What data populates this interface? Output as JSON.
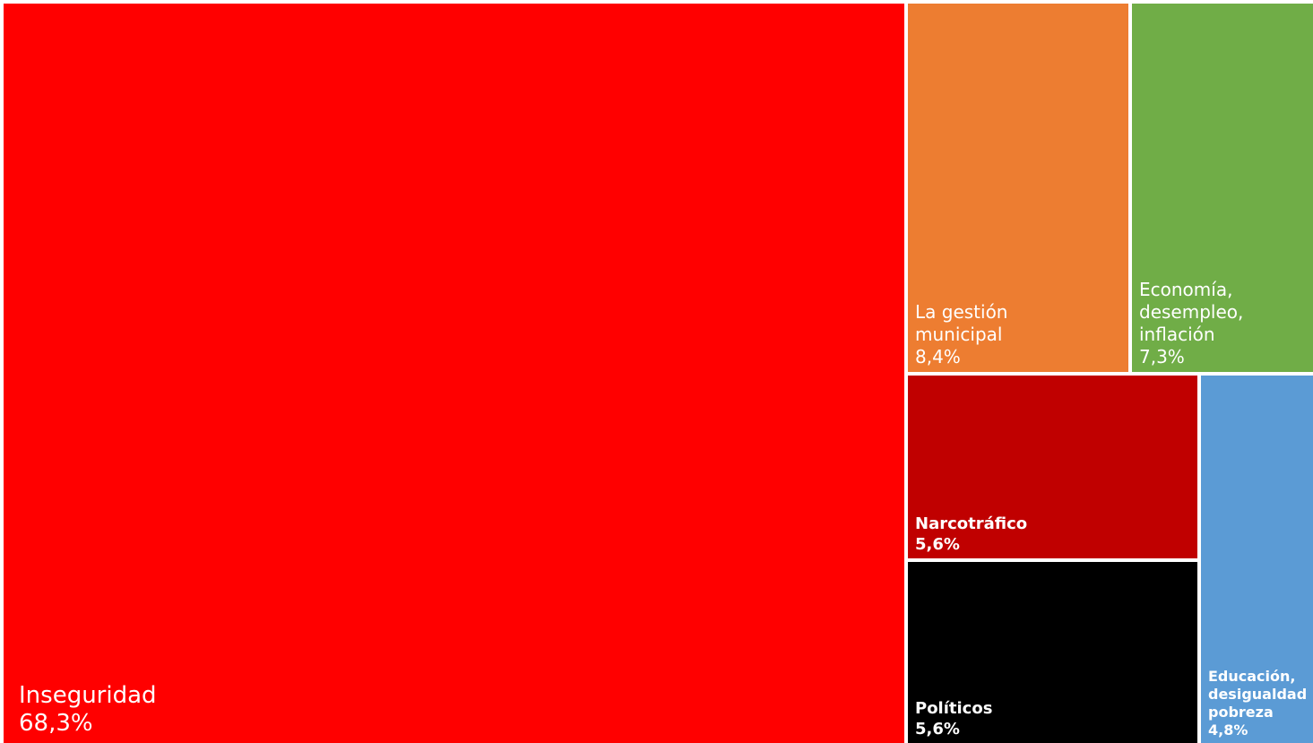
{
  "chart_data": {
    "type": "treemap",
    "unit": "%",
    "items": [
      {
        "label": "Inseguridad",
        "value": 68.3,
        "value_text": "68,3%",
        "color": "#ff0000"
      },
      {
        "label": "La gestión\nmunicipal",
        "value": 8.4,
        "value_text": "8,4%",
        "color": "#ed7d31"
      },
      {
        "label": "Economía,\ndesempleo,\ninflación",
        "value": 7.3,
        "value_text": "7,3%",
        "color": "#70ad47"
      },
      {
        "label": "Narcotráfico",
        "value": 5.6,
        "value_text": "5,6%",
        "color": "#c00000"
      },
      {
        "label": "Políticos",
        "value": 5.6,
        "value_text": "5,6%",
        "color": "#000000"
      },
      {
        "label": "Educación,\ndesigualdad\npobreza",
        "value": 4.8,
        "value_text": "4,8%",
        "color": "#5b9bd5"
      }
    ]
  }
}
